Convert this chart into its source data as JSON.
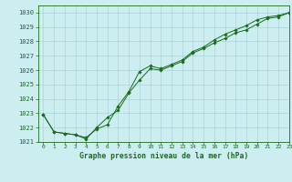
{
  "title": "Graphe pression niveau de la mer (hPa)",
  "bg_color": "#cceef0",
  "grid_color": "#aad4d8",
  "line_color": "#1a6b1a",
  "marker_color": "#1a6b1a",
  "xlim": [
    -0.5,
    23
  ],
  "ylim": [
    1021.0,
    1030.5
  ],
  "xticks": [
    0,
    1,
    2,
    3,
    4,
    5,
    6,
    7,
    8,
    9,
    10,
    11,
    12,
    13,
    14,
    15,
    16,
    17,
    18,
    19,
    20,
    21,
    22,
    23
  ],
  "yticks": [
    1021,
    1022,
    1023,
    1024,
    1025,
    1026,
    1027,
    1028,
    1029,
    1030
  ],
  "series1_x": [
    0,
    1,
    2,
    3,
    4,
    5,
    6,
    7,
    8,
    9,
    10,
    11,
    12,
    13,
    14,
    15,
    16,
    17,
    18,
    19,
    20,
    21,
    22,
    23
  ],
  "series1_y": [
    1022.9,
    1021.7,
    1021.6,
    1021.5,
    1021.2,
    1022.0,
    1022.7,
    1023.2,
    1024.4,
    1025.3,
    1026.1,
    1026.0,
    1026.3,
    1026.6,
    1027.2,
    1027.5,
    1027.9,
    1028.2,
    1028.6,
    1028.8,
    1029.2,
    1029.6,
    1029.7,
    1030.0
  ],
  "series2_x": [
    0,
    1,
    2,
    3,
    4,
    5,
    6,
    7,
    8,
    9,
    10,
    11,
    12,
    13,
    14,
    15,
    16,
    17,
    18,
    19,
    20,
    21,
    22,
    23
  ],
  "series2_y": [
    1022.9,
    1021.7,
    1021.6,
    1021.5,
    1021.3,
    1021.9,
    1022.2,
    1023.5,
    1024.5,
    1025.9,
    1026.3,
    1026.1,
    1026.4,
    1026.7,
    1027.3,
    1027.6,
    1028.1,
    1028.5,
    1028.8,
    1029.1,
    1029.5,
    1029.7,
    1029.8,
    1030.0
  ]
}
